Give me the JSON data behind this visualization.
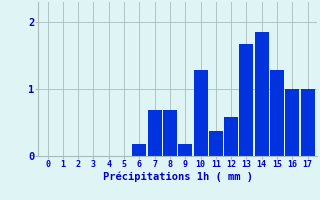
{
  "categories": [
    0,
    1,
    2,
    3,
    4,
    5,
    6,
    7,
    8,
    9,
    10,
    11,
    12,
    13,
    14,
    15,
    16,
    17
  ],
  "values": [
    0,
    0,
    0,
    0,
    0,
    0,
    0.18,
    0.68,
    0.68,
    0.18,
    1.28,
    0.38,
    0.58,
    1.68,
    1.85,
    1.28,
    1.0,
    1.0
  ],
  "bar_color": "#0033dd",
  "background_color": "#dff4f4",
  "grid_color": "#aabbbb",
  "xlabel": "Précipitations 1h ( mm )",
  "xlabel_color": "#0000cc",
  "tick_color": "#0000cc",
  "ylim": [
    0,
    2.3
  ],
  "yticks": [
    0,
    1,
    2
  ],
  "fig_bg": "#dff4f4"
}
